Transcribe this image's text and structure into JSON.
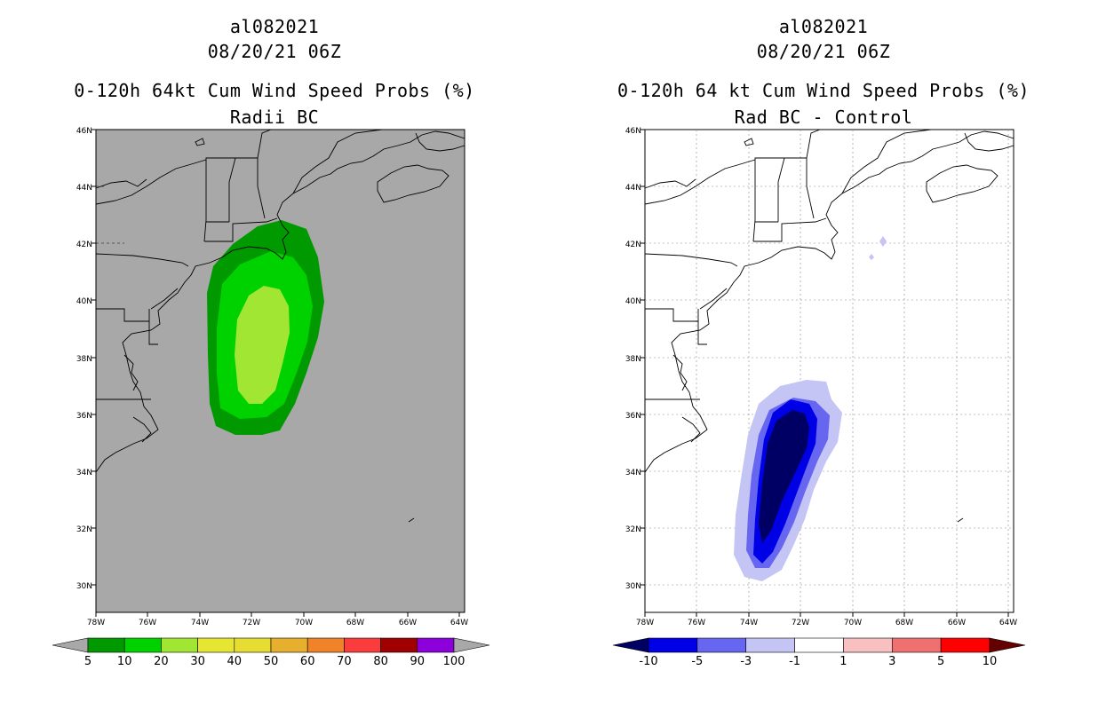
{
  "left": {
    "storm_id": "al082021",
    "datetime": "08/20/21 06Z",
    "product": "0-120h 64kt Cum Wind Speed Probs (%)",
    "subtitle": "Radii BC",
    "background_color": "#a8a8a8",
    "colorbar": {
      "labels": [
        "5",
        "10",
        "20",
        "30",
        "40",
        "50",
        "60",
        "70",
        "80",
        "90",
        "100"
      ],
      "colors": [
        "#009a00",
        "#00d200",
        "#a0e632",
        "#e6e632",
        "#e6dc32",
        "#e6af2d",
        "#f08228",
        "#fa3c3c",
        "#a00000",
        "#8c00dc"
      ],
      "under_color": "#a8a8a8",
      "over_color": "#a8a8a8"
    },
    "contours": [
      {
        "level": "5",
        "color": "#009a00"
      },
      {
        "level": "10",
        "color": "#00d200"
      },
      {
        "level": "20",
        "color": "#a0e632"
      }
    ]
  },
  "right": {
    "storm_id": "al082021",
    "datetime": "08/20/21 06Z",
    "product": "0-120h 64 kt Cum Wind Speed Probs (%)",
    "subtitle": "Rad BC - Control",
    "background_color": "#ffffff",
    "colorbar": {
      "labels": [
        "-10",
        "-5",
        "-3",
        "-1",
        "1",
        "3",
        "5",
        "10"
      ],
      "colors": [
        "#0000e6",
        "#6666f0",
        "#c4c4f5",
        "#ffffff",
        "#f8c0c0",
        "#f07070",
        "#ff0000"
      ],
      "under_color": "#000064",
      "over_color": "#640000"
    },
    "contours": [
      {
        "level": "-1",
        "color": "#c4c4f5"
      },
      {
        "level": "-3",
        "color": "#6666f0"
      },
      {
        "level": "-5",
        "color": "#0000e6"
      },
      {
        "level": "-10",
        "color": "#000064"
      }
    ]
  },
  "axes": {
    "lat_labels": [
      "46N",
      "44N",
      "42N",
      "40N",
      "38N",
      "36N",
      "34N",
      "32N",
      "30N"
    ],
    "lon_labels": [
      "78W",
      "76W",
      "74W",
      "72W",
      "70W",
      "68W",
      "66W",
      "64W"
    ],
    "lat_range": [
      29,
      46
    ],
    "lon_range": [
      -78,
      -63.8
    ]
  }
}
